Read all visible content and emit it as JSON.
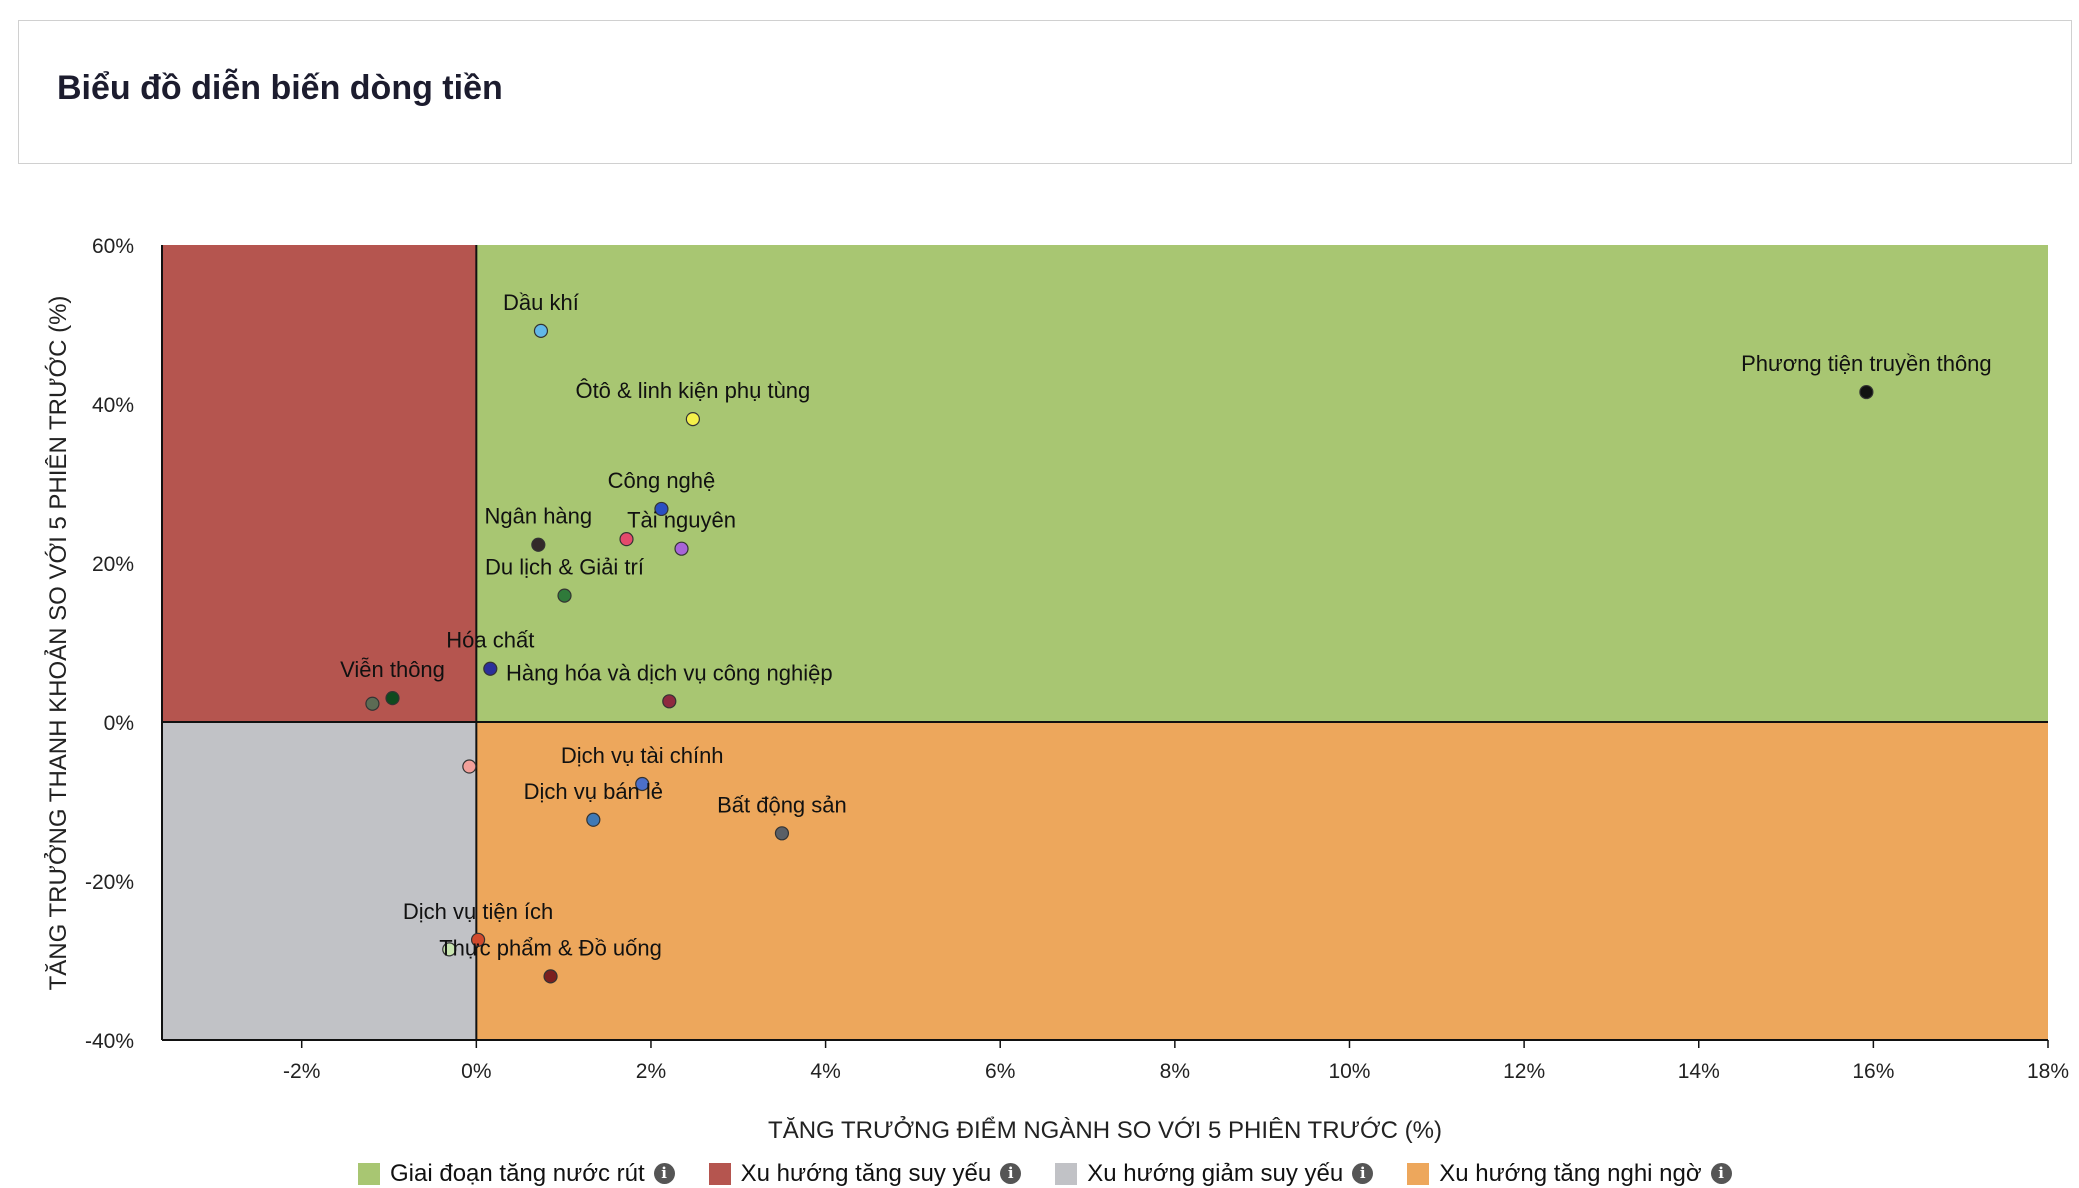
{
  "page": {
    "title": "Biểu đồ diễn biến dòng tiền"
  },
  "colors": {
    "q1": "#a8c672",
    "q2": "#b5554f",
    "q3": "#c1c2c6",
    "q4": "#eda75c",
    "axis": "#111111"
  },
  "legend": [
    {
      "label": "Giai đoạn tăng nước rút",
      "color": "#a8c672",
      "icon": "info-icon"
    },
    {
      "label": "Xu hướng tăng suy yếu",
      "color": "#b5554f",
      "icon": "info-icon"
    },
    {
      "label": "Xu hướng giảm suy yếu",
      "color": "#c1c2c6",
      "icon": "info-icon"
    },
    {
      "label": "Xu hướng tăng nghi ngờ",
      "color": "#eda75c",
      "icon": "info-icon"
    }
  ],
  "chart_data": {
    "type": "scatter",
    "xlabel": "TĂNG TRƯỞNG ĐIỂM NGÀNH SO VỚI 5 PHIÊN TRƯỚC (%)",
    "ylabel": "TĂNG TRƯỞNG THANH KHOẢN SO VỚI 5 PHIÊN TRƯỚC (%)",
    "xlim": [
      -3.6,
      18
    ],
    "ylim": [
      -40,
      60
    ],
    "xticks": [
      -2,
      0,
      2,
      4,
      6,
      8,
      10,
      12,
      14,
      16,
      18
    ],
    "yticks": [
      60,
      40,
      20,
      0,
      -20,
      -40
    ],
    "xtick_labels": [
      "-2%",
      "0%",
      "2%",
      "4%",
      "6%",
      "8%",
      "10%",
      "12%",
      "14%",
      "16%",
      "18%"
    ],
    "ytick_labels": [
      "60%",
      "40%",
      "20%",
      "0%",
      "-20%",
      "-40%"
    ],
    "grid": false,
    "legend_position": "bottom",
    "points": [
      {
        "name": "Dầu khí",
        "x": 0.74,
        "y": 49.2,
        "color": "#62b8e8"
      },
      {
        "name": "Ôtô & linh kiện phụ tùng",
        "x": 2.48,
        "y": 38.1,
        "color": "#f4f04a"
      },
      {
        "name": "Phương tiện truyền thông",
        "x": 15.92,
        "y": 41.5,
        "color": "#111111"
      },
      {
        "name": "Công nghệ",
        "x": 2.12,
        "y": 26.8,
        "color": "#2a4fc2"
      },
      {
        "name": "Ngân hàng",
        "x": 0.71,
        "y": 22.3,
        "color": "#33292a"
      },
      {
        "name": "",
        "x": 1.72,
        "y": 23.0,
        "color": "#e44a6c"
      },
      {
        "name": "Tài nguyên",
        "x": 2.35,
        "y": 21.8,
        "color": "#a865d8"
      },
      {
        "name": "Du lịch & Giải trí",
        "x": 1.01,
        "y": 15.9,
        "color": "#2f7a3a"
      },
      {
        "name": "Hóa chất",
        "x": 0.16,
        "y": 6.7,
        "color": "#2b2f9a"
      },
      {
        "name": "Viễn thông",
        "x": -0.96,
        "y": 3.0,
        "color": "#0f4a1e"
      },
      {
        "name": "",
        "x": -1.19,
        "y": 2.3,
        "color": "#5c6b54"
      },
      {
        "name": "Hàng hóa và dịch vụ công nghiệp",
        "x": 2.21,
        "y": 2.6,
        "color": "#8e2a3f"
      },
      {
        "name": "",
        "x": -0.08,
        "y": -5.6,
        "color": "#f2a09a"
      },
      {
        "name": "Dịch vụ tài chính",
        "x": 1.9,
        "y": -7.8,
        "color": "#4c6fc9"
      },
      {
        "name": "Dịch vụ bán lẻ",
        "x": 1.34,
        "y": -12.3,
        "color": "#3f79b5"
      },
      {
        "name": "Bất động sản",
        "x": 3.5,
        "y": -14.0,
        "color": "#5a5f66"
      },
      {
        "name": "Dịch vụ tiện ích",
        "x": 0.02,
        "y": -27.4,
        "color": "#d24a2c"
      },
      {
        "name": "",
        "x": -0.31,
        "y": -28.6,
        "color": "#c8e4b0"
      },
      {
        "name": "Thực phẩm & Đồ uống",
        "x": 0.85,
        "y": -32.0,
        "color": "#7a1f1f"
      }
    ]
  }
}
